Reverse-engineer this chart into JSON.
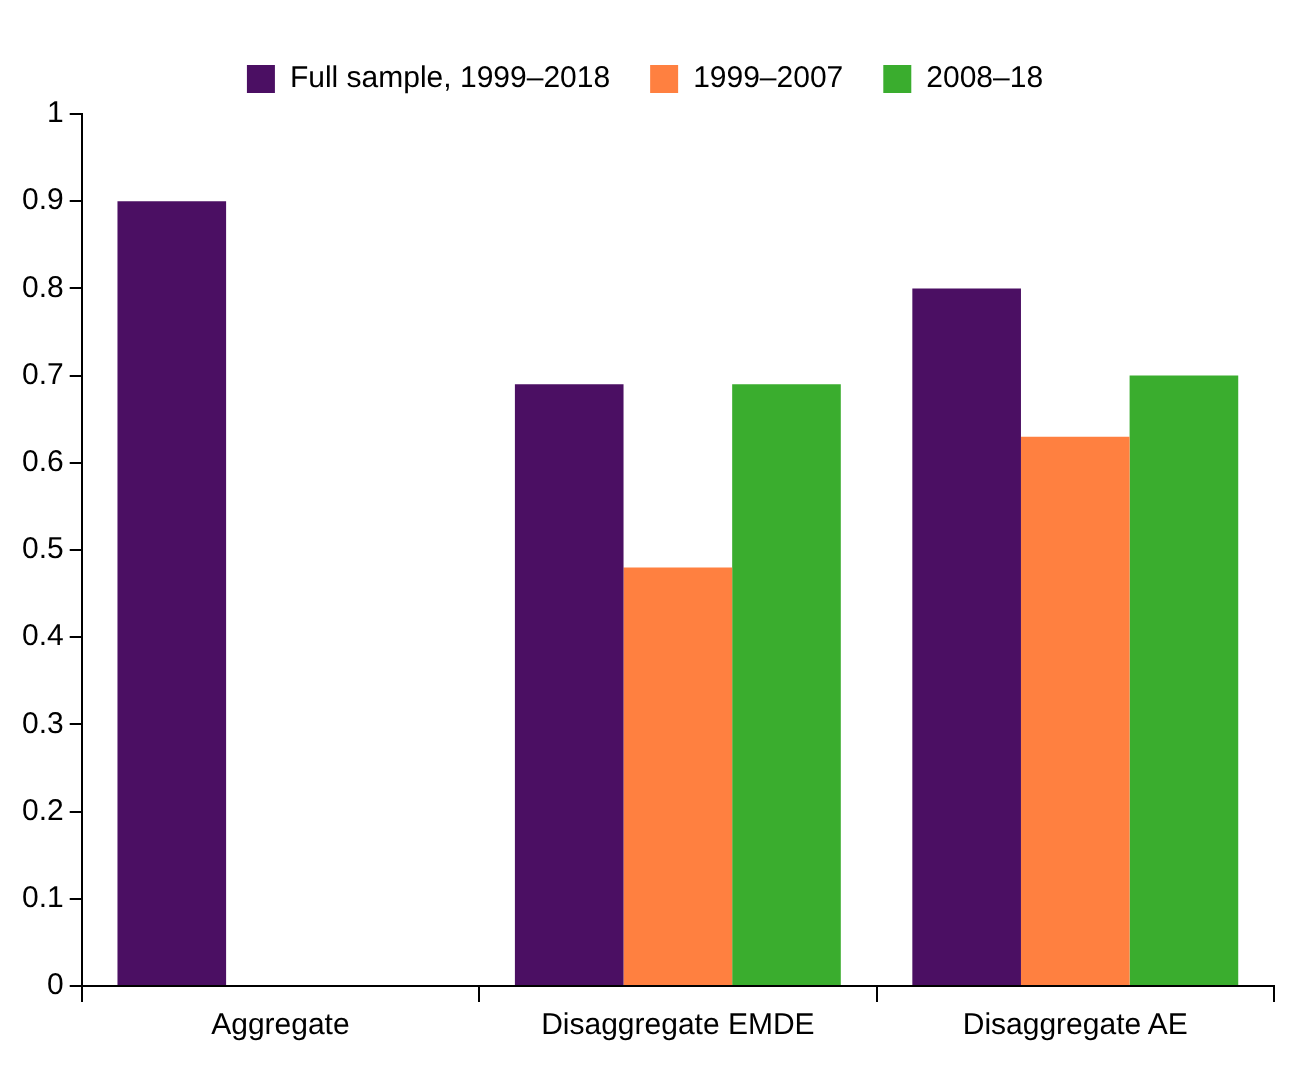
{
  "chart_data": {
    "type": "bar",
    "categories": [
      "Aggregate",
      "Disaggregate EMDE",
      "Disaggregate AE"
    ],
    "series": [
      {
        "name": "Full sample, 1999–2018",
        "color": "#4b0f63",
        "values": [
          0.9,
          0.69,
          0.8
        ]
      },
      {
        "name": "1999–2007",
        "color": "#ff8040",
        "values": [
          null,
          0.48,
          0.63
        ]
      },
      {
        "name": "2008–18",
        "color": "#3aad2e",
        "values": [
          null,
          0.69,
          0.7
        ]
      }
    ],
    "ylim": [
      0,
      1
    ],
    "yticks": [
      0,
      0.1,
      0.2,
      0.3,
      0.4,
      0.5,
      0.6,
      0.7,
      0.8,
      0.9,
      1
    ],
    "grid": false,
    "legend": "top"
  }
}
